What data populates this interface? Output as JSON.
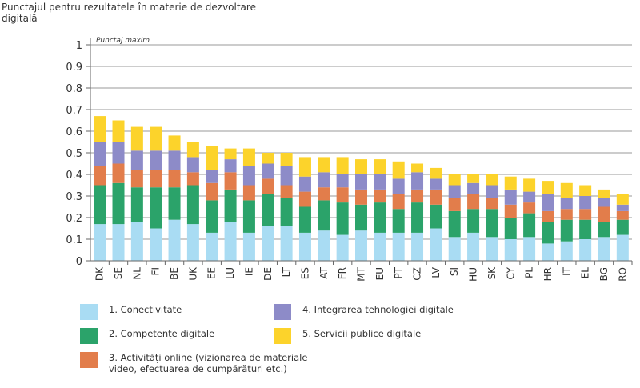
{
  "chart_data": {
    "type": "bar",
    "stacked": true,
    "title": "Punctajul pentru rezultatele în materie de dezvoltare digitală",
    "annotation": "Punctaj maxim",
    "ylim": [
      0,
      1
    ],
    "yticks": [
      "0",
      "0.1",
      "0.2",
      "0.3",
      "0.4",
      "0.5",
      "0.6",
      "0.7",
      "0.8",
      "0.9",
      "1"
    ],
    "grid": true,
    "legend_position": "bottom",
    "categories": [
      "DK",
      "SE",
      "NL",
      "FI",
      "BE",
      "UK",
      "EE",
      "LU",
      "IE",
      "DE",
      "LT",
      "ES",
      "AT",
      "FR",
      "MT",
      "EU",
      "PT",
      "CZ",
      "LV",
      "SI",
      "HU",
      "SK",
      "CY",
      "PL",
      "HR",
      "IT",
      "EL",
      "BG",
      "RO"
    ],
    "series": [
      {
        "name": "1. Conectivitate",
        "color": "#a9dcf3",
        "values": [
          0.17,
          0.17,
          0.18,
          0.15,
          0.19,
          0.17,
          0.13,
          0.18,
          0.13,
          0.16,
          0.16,
          0.13,
          0.14,
          0.12,
          0.14,
          0.13,
          0.13,
          0.13,
          0.15,
          0.11,
          0.13,
          0.11,
          0.1,
          0.11,
          0.08,
          0.09,
          0.1,
          0.11,
          0.12
        ]
      },
      {
        "name": "2. Competențe digitale",
        "color": "#2ba36a",
        "values": [
          0.18,
          0.19,
          0.16,
          0.19,
          0.15,
          0.18,
          0.15,
          0.15,
          0.15,
          0.15,
          0.13,
          0.12,
          0.14,
          0.15,
          0.12,
          0.14,
          0.11,
          0.14,
          0.11,
          0.12,
          0.11,
          0.13,
          0.1,
          0.11,
          0.1,
          0.1,
          0.09,
          0.07,
          0.07
        ]
      },
      {
        "name": "3. Activități online (vizionarea de materiale video, efectuarea de cumpărături etc.)",
        "color": "#e27d4b",
        "values": [
          0.09,
          0.09,
          0.08,
          0.08,
          0.08,
          0.06,
          0.08,
          0.08,
          0.07,
          0.07,
          0.06,
          0.07,
          0.06,
          0.07,
          0.07,
          0.06,
          0.07,
          0.06,
          0.07,
          0.06,
          0.07,
          0.05,
          0.06,
          0.05,
          0.05,
          0.05,
          0.05,
          0.07,
          0.04
        ]
      },
      {
        "name": "4. Integrarea tehnologiei digitale",
        "color": "#8d8bc8",
        "values": [
          0.11,
          0.1,
          0.09,
          0.09,
          0.09,
          0.07,
          0.06,
          0.06,
          0.09,
          0.07,
          0.09,
          0.07,
          0.07,
          0.06,
          0.07,
          0.07,
          0.07,
          0.08,
          0.05,
          0.06,
          0.05,
          0.06,
          0.07,
          0.05,
          0.08,
          0.05,
          0.06,
          0.04,
          0.03
        ]
      },
      {
        "name": "5. Servicii publice digitale",
        "color": "#fcd32b",
        "values": [
          0.12,
          0.1,
          0.11,
          0.11,
          0.07,
          0.07,
          0.11,
          0.05,
          0.08,
          0.05,
          0.06,
          0.09,
          0.07,
          0.08,
          0.07,
          0.07,
          0.08,
          0.04,
          0.05,
          0.05,
          0.04,
          0.05,
          0.06,
          0.06,
          0.06,
          0.07,
          0.05,
          0.04,
          0.05
        ]
      }
    ]
  }
}
